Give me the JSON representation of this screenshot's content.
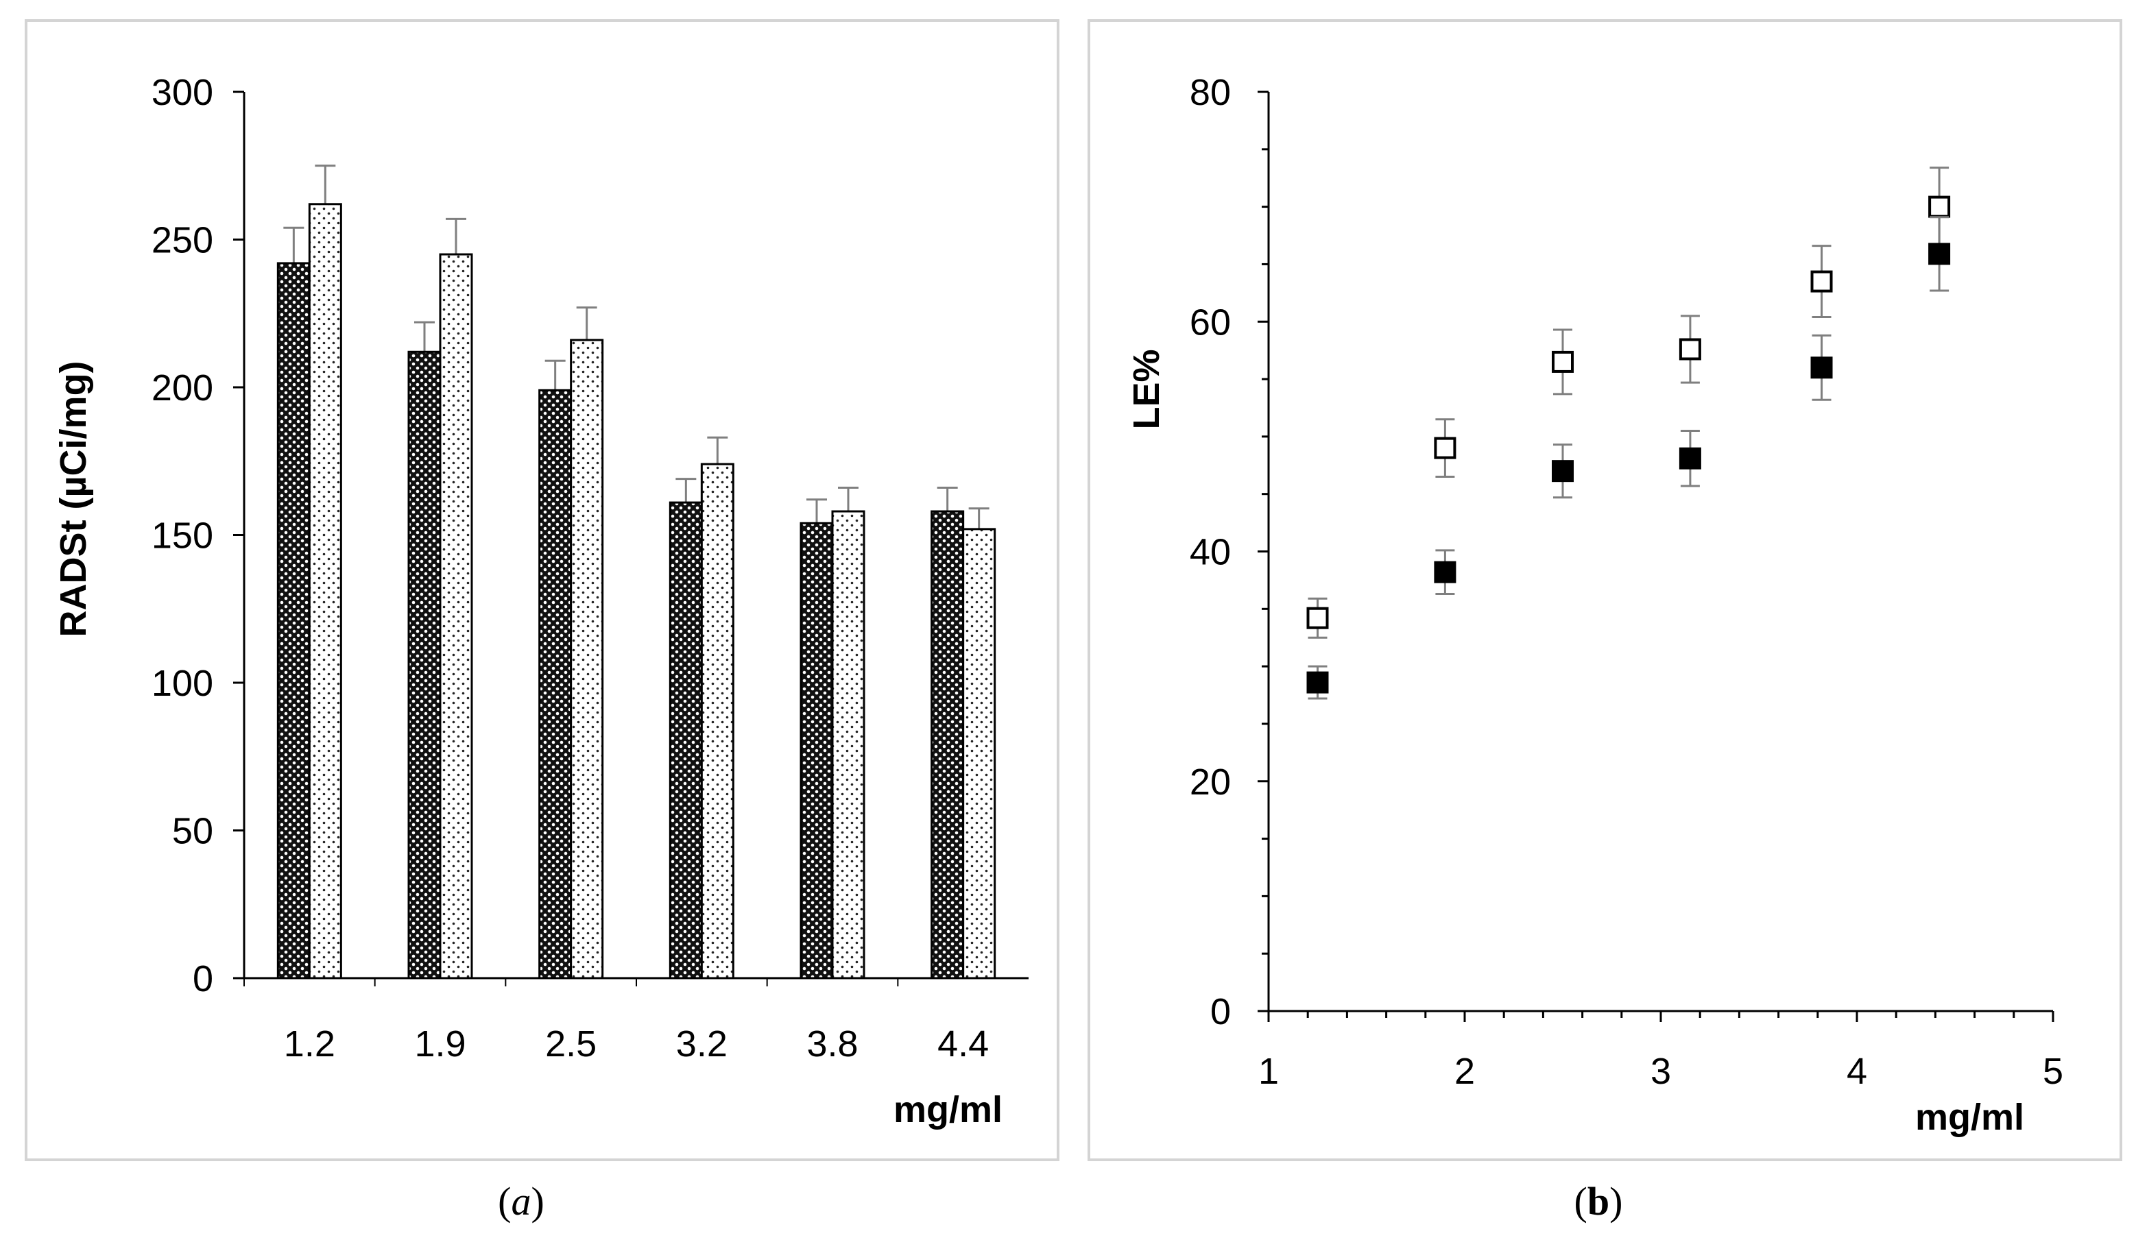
{
  "figure": {
    "panel_a_label": {
      "open": "(",
      "letter": "a",
      "close": ")"
    },
    "panel_b_label": {
      "open": "(",
      "letter": "b",
      "close": ")"
    }
  },
  "chart_data": [
    {
      "type": "bar",
      "panel": "a",
      "title": "",
      "ylabel": "RADSt (µCi/mg)",
      "xlabel": "mg/ml",
      "ylim": [
        0,
        300
      ],
      "ytick_values": [
        0,
        50,
        100,
        150,
        200,
        250,
        300
      ],
      "categories": [
        "1.2",
        "1.9",
        "2.5",
        "3.2",
        "3.8",
        "4.4"
      ],
      "series": [
        {
          "name": "",
          "fill": "dark-checkered",
          "values": [
            242,
            212,
            199,
            161,
            154,
            158
          ],
          "errors": [
            12,
            10,
            10,
            8,
            8,
            8
          ]
        },
        {
          "name": "",
          "fill": "light-dotted",
          "values": [
            262,
            245,
            216,
            174,
            158,
            152
          ],
          "errors": [
            13,
            12,
            11,
            9,
            8,
            7
          ]
        }
      ],
      "grid": false,
      "legend": "none"
    },
    {
      "type": "scatter",
      "panel": "b",
      "title": "",
      "ylabel": "LE%",
      "xlabel": "mg/ml",
      "xlim": [
        1,
        5
      ],
      "ylim": [
        0,
        80
      ],
      "xtick_values": [
        1,
        2,
        3,
        4,
        5
      ],
      "ytick_values": [
        0,
        20,
        40,
        60,
        80
      ],
      "series": [
        {
          "name": "",
          "marker": "open-square",
          "x": [
            1.25,
            1.9,
            2.5,
            3.15,
            3.82,
            4.42
          ],
          "y": [
            34.2,
            49.0,
            56.5,
            57.6,
            63.5,
            70.0
          ],
          "errors": [
            1.7,
            2.5,
            2.8,
            2.9,
            3.1,
            3.4
          ]
        },
        {
          "name": "",
          "marker": "filled-square",
          "x": [
            1.25,
            1.9,
            2.5,
            3.15,
            3.82,
            4.42
          ],
          "y": [
            28.6,
            38.2,
            47.0,
            48.1,
            56.0,
            65.9
          ],
          "errors": [
            1.4,
            1.9,
            2.3,
            2.4,
            2.8,
            3.2
          ]
        }
      ],
      "grid": false,
      "legend": "none"
    }
  ],
  "colors": {
    "frame": "#d4d4d4",
    "axis": "#000000",
    "error_bar": "#7f7f7f",
    "dark_fill": "#1a1a1a",
    "light_fill": "#ffffff"
  }
}
